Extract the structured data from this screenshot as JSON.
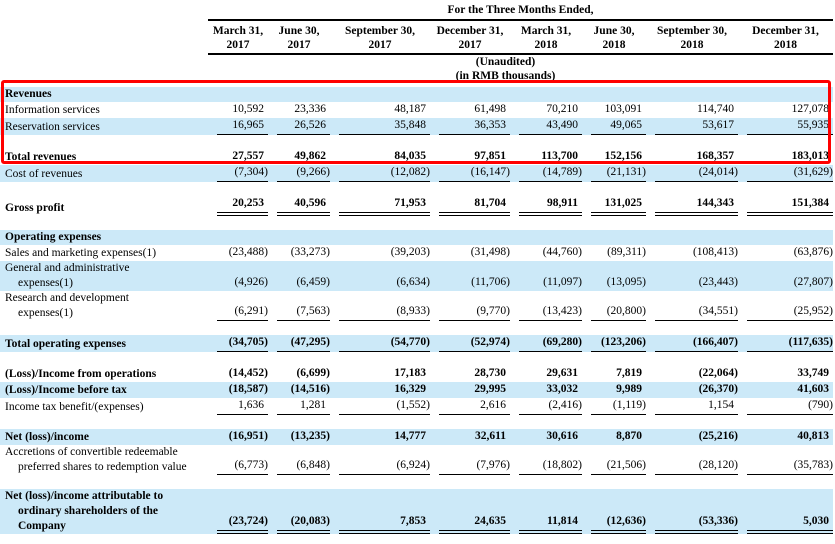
{
  "header": {
    "title": "For the Three Months Ended,",
    "columns": [
      {
        "month": "March 31,",
        "year": "2017"
      },
      {
        "month": "June 30,",
        "year": "2017"
      },
      {
        "month": "September 30,",
        "year": "2017"
      },
      {
        "month": "December 31,",
        "year": "2017"
      },
      {
        "month": "March 31,",
        "year": "2018"
      },
      {
        "month": "June 30,",
        "year": "2018"
      },
      {
        "month": "September 30,",
        "year": "2018"
      },
      {
        "month": "December 31,",
        "year": "2018"
      }
    ],
    "note1": "(Unaudited)",
    "note2": "(in RMB thousands)"
  },
  "highlight": {
    "color": "#ff0000"
  },
  "rows": [
    {
      "label": [
        "Revenues"
      ],
      "bold": true,
      "bg": "blue",
      "values": []
    },
    {
      "label": [
        "Information services"
      ],
      "values": [
        "10,592",
        "23,336",
        "48,187",
        "61,498",
        "70,210",
        "103,091",
        "114,740",
        "127,078"
      ]
    },
    {
      "label": [
        "Reservation services"
      ],
      "bg": "blue",
      "rule": "single",
      "values": [
        "16,965",
        "26,526",
        "35,848",
        "36,353",
        "43,490",
        "49,065",
        "53,617",
        "55,935"
      ]
    },
    {
      "spacer": true
    },
    {
      "label": [
        "Total revenues"
      ],
      "bold": true,
      "values": [
        "27,557",
        "49,862",
        "84,035",
        "97,851",
        "113,700",
        "152,156",
        "168,357",
        "183,013"
      ]
    },
    {
      "label": [
        "Cost of revenues"
      ],
      "bg": "blue",
      "rule": "single",
      "values": [
        "(7,304)",
        "(9,266)",
        "(12,082)",
        "(16,147)",
        "(14,789)",
        "(21,131)",
        "(24,014)",
        "(31,629)"
      ]
    },
    {
      "spacer": true
    },
    {
      "label": [
        "Gross profit"
      ],
      "bold": true,
      "rule": "double",
      "values": [
        "20,253",
        "40,596",
        "71,953",
        "81,704",
        "98,911",
        "131,025",
        "144,343",
        "151,384"
      ]
    },
    {
      "spacer": true
    },
    {
      "label": [
        "Operating expenses"
      ],
      "bold": true,
      "bg": "blue",
      "values": []
    },
    {
      "label": [
        "Sales and marketing expenses(1)"
      ],
      "values": [
        "(23,488)",
        "(33,273)",
        "(39,203)",
        "(31,498)",
        "(44,760)",
        "(89,311)",
        "(108,413)",
        "(63,876)"
      ]
    },
    {
      "label": [
        "General and administrative",
        "expenses(1)"
      ],
      "bg": "blue",
      "values": [
        "(4,926)",
        "(6,459)",
        "(6,634)",
        "(11,706)",
        "(11,097)",
        "(13,095)",
        "(23,443)",
        "(27,807)"
      ]
    },
    {
      "label": [
        "Research and development",
        "expenses(1)"
      ],
      "rule": "single",
      "values": [
        "(6,291)",
        "(7,563)",
        "(8,933)",
        "(9,770)",
        "(13,423)",
        "(20,800)",
        "(34,551)",
        "(25,952)"
      ]
    },
    {
      "spacer": true
    },
    {
      "label": [
        "Total operating expenses"
      ],
      "bold": true,
      "bg": "blue",
      "rule": "single",
      "values": [
        "(34,705)",
        "(47,295)",
        "(54,770)",
        "(52,974)",
        "(69,280)",
        "(123,206)",
        "(166,407)",
        "(117,635)"
      ]
    },
    {
      "spacer": true
    },
    {
      "label": [
        "(Loss)/Income from operations"
      ],
      "bold": true,
      "values": [
        "(14,452)",
        "(6,699)",
        "17,183",
        "28,730",
        "29,631",
        "7,819",
        "(22,064)",
        "33,749"
      ]
    },
    {
      "label": [
        "(Loss)/Income before tax"
      ],
      "bold": true,
      "bg": "blue",
      "values": [
        "(18,587)",
        "(14,516)",
        "16,329",
        "29,995",
        "33,032",
        "9,989",
        "(26,370)",
        "41,603"
      ]
    },
    {
      "label": [
        "Income tax benefit/(expenses)"
      ],
      "rule": "single",
      "values": [
        "1,636",
        "1,281",
        "(1,552)",
        "2,616",
        "(2,416)",
        "(1,119)",
        "1,154",
        "(790)"
      ]
    },
    {
      "spacer": true
    },
    {
      "label": [
        "Net (loss)/income"
      ],
      "bold": true,
      "bg": "blue",
      "values": [
        "(16,951)",
        "(13,235)",
        "14,777",
        "32,611",
        "30,616",
        "8,870",
        "(25,216)",
        "40,813"
      ]
    },
    {
      "label": [
        "Accretions of convertible redeemable",
        "preferred shares to redemption value"
      ],
      "rule": "single",
      "values": [
        "(6,773)",
        "(6,848)",
        "(6,924)",
        "(7,976)",
        "(18,802)",
        "(21,506)",
        "(28,120)",
        "(35,783)"
      ]
    },
    {
      "spacer": true
    },
    {
      "label": [
        "Net (loss)/income attributable to",
        "ordinary shareholders of the",
        "Company"
      ],
      "bold": true,
      "bg": "blue",
      "rule": "double",
      "values": [
        "(23,724)",
        "(20,083)",
        "7,853",
        "24,635",
        "11,814",
        "(12,636)",
        "(53,336)",
        "5,030"
      ]
    }
  ]
}
